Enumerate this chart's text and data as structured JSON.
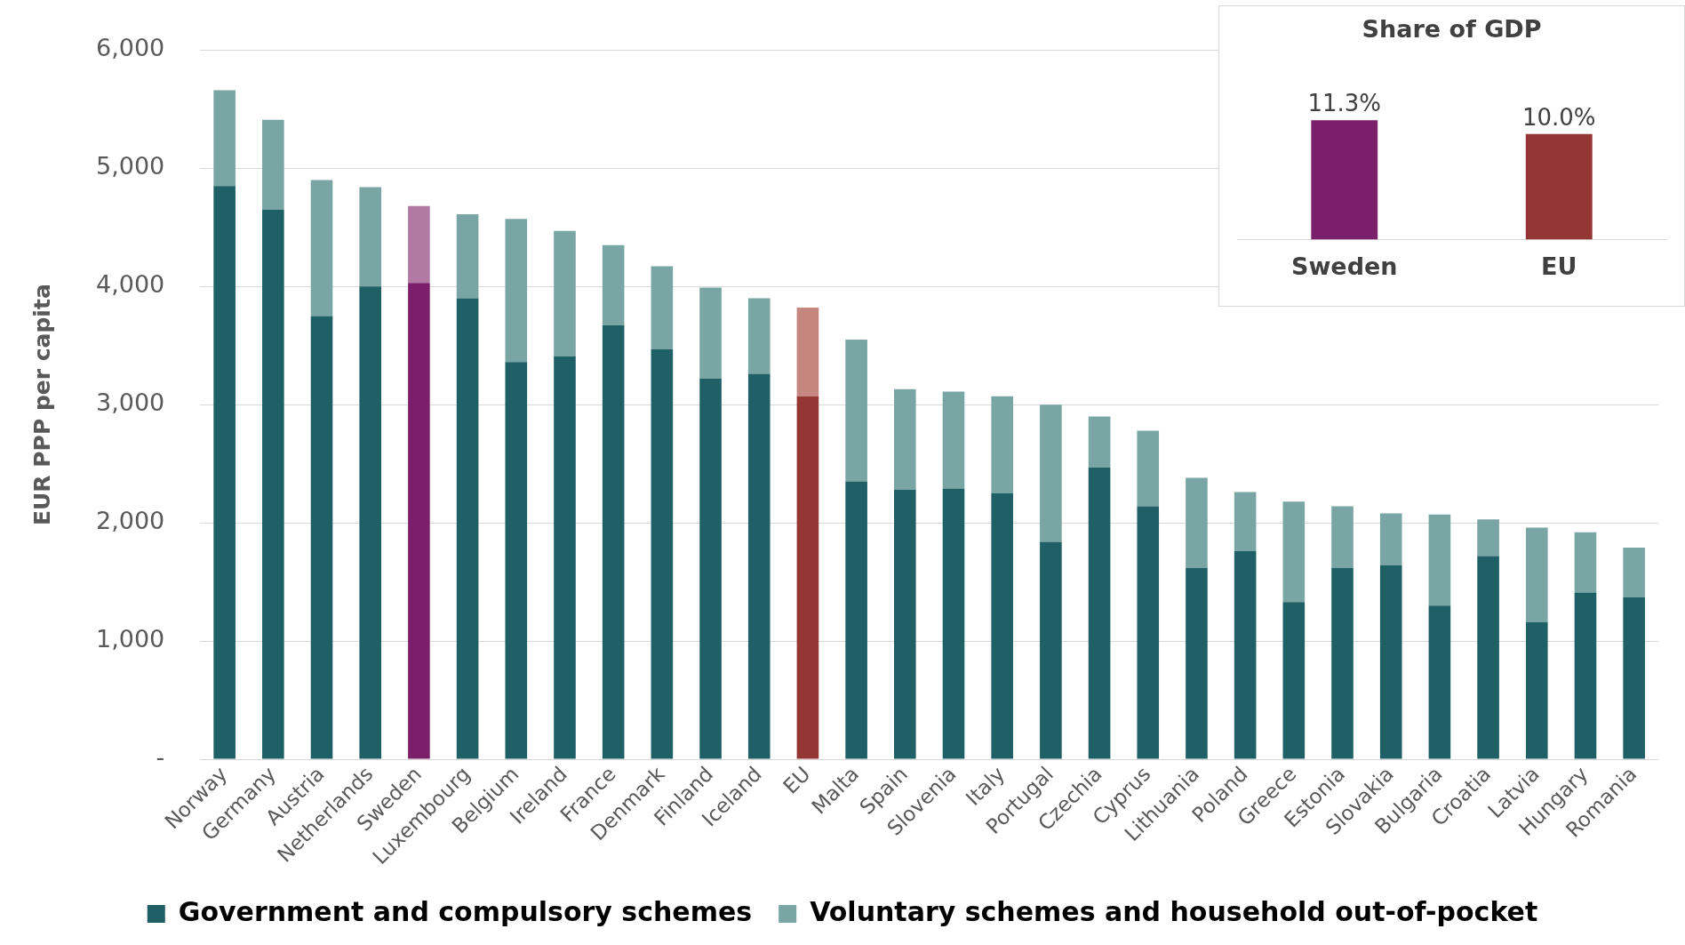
{
  "chart_data": [
    {
      "type": "bar",
      "stacked": true,
      "ylabel": "EUR PPP per capita",
      "categories": [
        "Norway",
        "Germany",
        "Austria",
        "Netherlands",
        "Sweden",
        "Luxembourg",
        "Belgium",
        "Ireland",
        "France",
        "Denmark",
        "Finland",
        "Iceland",
        "EU",
        "Malta",
        "Spain",
        "Slovenia",
        "Italy",
        "Portugal",
        "Czechia",
        "Cyprus",
        "Lithuania",
        "Poland",
        "Greece",
        "Estonia",
        "Slovakia",
        "Bulgaria",
        "Croatia",
        "Latvia",
        "Hungary",
        "Romania"
      ],
      "series": [
        {
          "name": "Government and compulsory schemes",
          "color": "#1f6066",
          "colors": [
            "#1f6066",
            "#1f6066",
            "#1f6066",
            "#1f6066",
            "#7b1f6a",
            "#1f6066",
            "#1f6066",
            "#1f6066",
            "#1f6066",
            "#1f6066",
            "#1f6066",
            "#1f6066",
            "#943634",
            "#1f6066",
            "#1f6066",
            "#1f6066",
            "#1f6066",
            "#1f6066",
            "#1f6066",
            "#1f6066",
            "#1f6066",
            "#1f6066",
            "#1f6066",
            "#1f6066",
            "#1f6066",
            "#1f6066",
            "#1f6066",
            "#1f6066",
            "#1f6066",
            "#1f6066"
          ],
          "values": [
            4850,
            4650,
            3750,
            4000,
            4030,
            3900,
            3360,
            3410,
            3670,
            3470,
            3220,
            3260,
            3070,
            2350,
            2280,
            2290,
            2250,
            1840,
            2470,
            2140,
            1620,
            1760,
            1330,
            1620,
            1640,
            1300,
            1720,
            1160,
            1410,
            1370
          ]
        },
        {
          "name": "Voluntary schemes and household out-of-pocket",
          "color": "#79a5a5",
          "colors": [
            "#79a5a5",
            "#79a5a5",
            "#79a5a5",
            "#79a5a5",
            "#b07aa5",
            "#79a5a5",
            "#79a5a5",
            "#79a5a5",
            "#79a5a5",
            "#79a5a5",
            "#79a5a5",
            "#79a5a5",
            "#c4867f",
            "#79a5a5",
            "#79a5a5",
            "#79a5a5",
            "#79a5a5",
            "#79a5a5",
            "#79a5a5",
            "#79a5a5",
            "#79a5a5",
            "#79a5a5",
            "#79a5a5",
            "#79a5a5",
            "#79a5a5",
            "#79a5a5",
            "#79a5a5",
            "#79a5a5",
            "#79a5a5",
            "#79a5a5"
          ],
          "values": [
            810,
            760,
            1150,
            840,
            650,
            710,
            1210,
            1060,
            680,
            700,
            770,
            640,
            750,
            1200,
            850,
            820,
            820,
            1160,
            430,
            640,
            760,
            500,
            850,
            520,
            440,
            770,
            310,
            800,
            510,
            420
          ]
        }
      ],
      "ylim": [
        0,
        6000
      ],
      "yticks": [
        {
          "value": 0,
          "label": "-"
        },
        {
          "value": 1000,
          "label": "1,000"
        },
        {
          "value": 2000,
          "label": "2,000"
        },
        {
          "value": 3000,
          "label": "3,000"
        },
        {
          "value": 4000,
          "label": "4,000"
        },
        {
          "value": 5000,
          "label": "5,000"
        },
        {
          "value": 6000,
          "label": "6,000"
        }
      ],
      "grid": "y",
      "legend": "bottom"
    },
    {
      "type": "bar",
      "title": "Share of GDP",
      "categories": [
        "Sweden",
        "EU"
      ],
      "values": [
        11.3,
        10.0
      ],
      "colors": [
        "#7b1f6a",
        "#943634"
      ],
      "value_labels": [
        "11.3%",
        "10.0%"
      ],
      "tick_labels": "x",
      "grid": false
    }
  ]
}
